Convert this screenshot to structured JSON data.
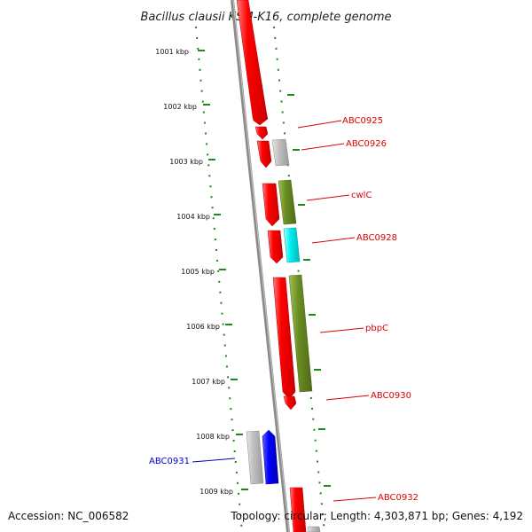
{
  "title": "Bacillus clausii KSM-K16, complete genome",
  "footer": {
    "accession": "Accession: NC_006582",
    "summary": "Topology: circular; Length: 4,303,871 bp; Genes: 4,192"
  },
  "colors": {
    "backbone": "#8a8a8a",
    "tick_dots": "#1a8a1a",
    "forward_gene": "#ee0000",
    "other_gene": "#b8b8b8",
    "olive_gene": "#6b8e23",
    "cyan_gene": "#00eeee",
    "blue_gene": "#0000ee",
    "label_red": "#dd0000",
    "label_blue": "#0000cc"
  },
  "ticks": [
    {
      "label": "1001 kbp",
      "kbp": 1001
    },
    {
      "label": "1002 kbp",
      "kbp": 1002
    },
    {
      "label": "1003 kbp",
      "kbp": 1003
    },
    {
      "label": "1004 kbp",
      "kbp": 1004
    },
    {
      "label": "1005 kbp",
      "kbp": 1005
    },
    {
      "label": "1006 kbp",
      "kbp": 1006
    },
    {
      "label": "1007 kbp",
      "kbp": 1007
    },
    {
      "label": "1008 kbp",
      "kbp": 1008
    },
    {
      "label": "1009 kbp",
      "kbp": 1009
    }
  ],
  "gene_labels": [
    {
      "text": "ABC0925",
      "color": "red"
    },
    {
      "text": "ABC0926",
      "color": "red"
    },
    {
      "text": "cwlC",
      "color": "red"
    },
    {
      "text": "ABC0928",
      "color": "red"
    },
    {
      "text": "pbpC",
      "color": "red"
    },
    {
      "text": "ABC0930",
      "color": "red"
    },
    {
      "text": "ABC0931",
      "color": "blue"
    },
    {
      "text": "ABC0932",
      "color": "red"
    }
  ]
}
